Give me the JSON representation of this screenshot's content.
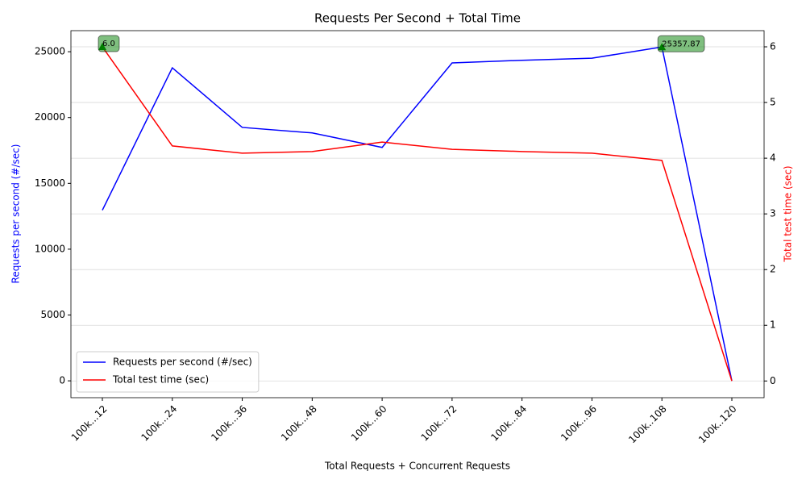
{
  "chart_data": {
    "type": "line",
    "title": "Requests Per Second + Total Time",
    "xlabel": "Total Requests + Concurrent Requests",
    "ylabel": "Requests per second (#/sec)",
    "y2label": "Total test time (sec)",
    "categories": [
      "100k...12",
      "100k...24",
      "100k...36",
      "100k...48",
      "100k...60",
      "100k...72",
      "100k...84",
      "100k...96",
      "100k..108",
      "100k..120"
    ],
    "series": [
      {
        "name": "Requests per second (#/sec)",
        "color": "#0000ff",
        "axis": "y",
        "values": [
          12960,
          23780,
          19250,
          18830,
          17730,
          24150,
          24350,
          24510,
          25357.87,
          0
        ],
        "value_labels": [
          null,
          null,
          null,
          null,
          null,
          null,
          null,
          null,
          "25357.87",
          null
        ]
      },
      {
        "name": "Total test time (sec)",
        "color": "#ff0000",
        "axis": "y2",
        "values": [
          6.0,
          4.22,
          4.09,
          4.12,
          4.29,
          4.16,
          4.12,
          4.09,
          3.96,
          0
        ],
        "value_labels": [
          "6.0",
          null,
          null,
          null,
          null,
          null,
          null,
          null,
          null,
          null
        ]
      }
    ],
    "ylim": [
      -1280,
      26600
    ],
    "yticks": [
      0,
      5000,
      10000,
      15000,
      20000,
      25000
    ],
    "y2lim": [
      -0.3,
      6.29
    ],
    "y2ticks": [
      0,
      1,
      2,
      3,
      4,
      5,
      6
    ],
    "grid": "y2",
    "legend": "lower left",
    "annotation_color": "#008000"
  }
}
